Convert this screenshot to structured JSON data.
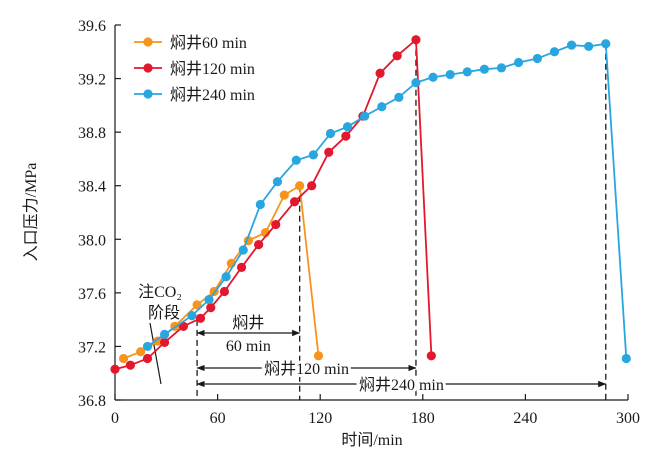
{
  "chart_data": {
    "type": "line",
    "xlabel": "时间/min",
    "ylabel": "入口压力/MPa",
    "xlim": [
      0,
      300
    ],
    "ylim": [
      36.8,
      39.6
    ],
    "xticks": [
      0,
      60,
      120,
      180,
      240,
      300
    ],
    "yticks": [
      "36.8",
      "37.2",
      "37.6",
      "38.0",
      "38.4",
      "38.8",
      "39.2",
      "39.6"
    ],
    "grid": false,
    "legend_position": "top-left",
    "series": [
      {
        "name": "焖井60 min",
        "color": "#F7941D",
        "x": [
          5,
          15,
          25,
          35,
          48,
          58,
          68,
          78,
          88,
          99,
          108,
          119
        ],
        "y": [
          37.11,
          37.16,
          37.24,
          37.35,
          37.51,
          37.61,
          37.82,
          37.99,
          38.05,
          38.33,
          38.4,
          37.13
        ]
      },
      {
        "name": "焖井120 min",
        "color": "#E3172D",
        "x": [
          0,
          9,
          19,
          29,
          40,
          50,
          56,
          64,
          74,
          84,
          94,
          105,
          115,
          125,
          135,
          145,
          155,
          165,
          176,
          185
        ],
        "y": [
          37.03,
          37.06,
          37.11,
          37.23,
          37.35,
          37.41,
          37.49,
          37.61,
          37.79,
          37.96,
          38.11,
          38.28,
          38.4,
          38.65,
          38.77,
          38.92,
          39.24,
          39.37,
          39.49,
          37.13
        ]
      },
      {
        "name": "焖井240 min",
        "color": "#29A6E0",
        "x": [
          19,
          29,
          45,
          55,
          65,
          75,
          85,
          95,
          106,
          116,
          126,
          136,
          146,
          156,
          166,
          176,
          186,
          196,
          206,
          216,
          226,
          236,
          247,
          257,
          267,
          277,
          287,
          299
        ],
        "y": [
          37.2,
          37.29,
          37.43,
          37.55,
          37.72,
          37.92,
          38.26,
          38.43,
          38.59,
          38.63,
          38.79,
          38.84,
          38.92,
          38.99,
          39.06,
          39.17,
          39.21,
          39.23,
          39.25,
          39.27,
          39.28,
          39.32,
          39.35,
          39.4,
          39.45,
          39.44,
          39.46,
          37.11
        ]
      }
    ],
    "annotations": {
      "injection_stage": {
        "lines": [
          "注CO₂",
          "阶段"
        ]
      },
      "soak_intervals": [
        {
          "lines": [
            "焖井",
            "60 min"
          ],
          "from": 48,
          "to": 108
        },
        {
          "lines": [
            "焖井120 min"
          ],
          "from": 48,
          "to": 176
        },
        {
          "lines": [
            "焖井240 min"
          ],
          "from": 48,
          "to": 287
        }
      ]
    }
  }
}
